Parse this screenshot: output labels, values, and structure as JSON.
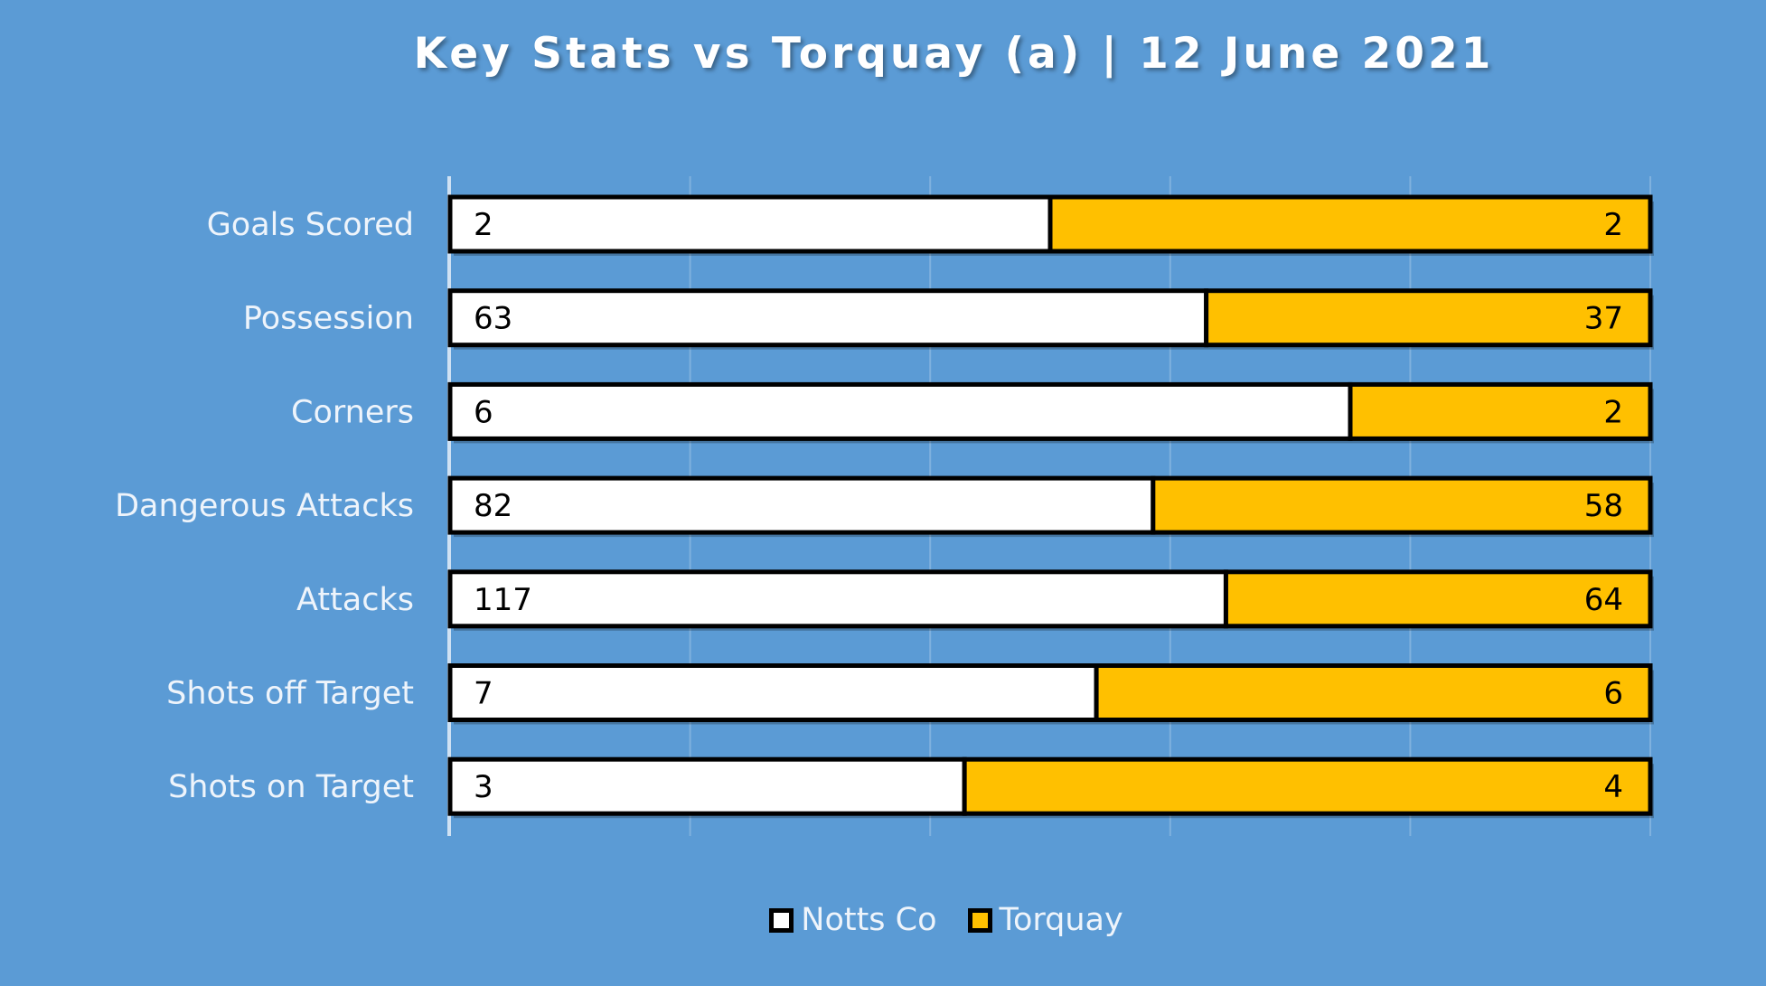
{
  "chart_data": {
    "type": "bar",
    "orientation": "horizontal",
    "stacking": "percent",
    "title": "Key Stats vs Torquay (a) | 12 June 2021",
    "categories": [
      "Goals Scored",
      "Possession",
      "Corners",
      "Dangerous Attacks",
      "Attacks",
      "Shots off Target",
      "Shots on Target"
    ],
    "series": [
      {
        "name": "Notts Co",
        "values": [
          2,
          63,
          6,
          82,
          117,
          7,
          3
        ],
        "color": "#ffffff"
      },
      {
        "name": "Torquay",
        "values": [
          2,
          37,
          2,
          58,
          64,
          6,
          4
        ],
        "color": "#ffc000"
      }
    ],
    "xlim": [
      0,
      1
    ],
    "grid": true,
    "legend": "bottom",
    "background": "#5b9bd5"
  }
}
